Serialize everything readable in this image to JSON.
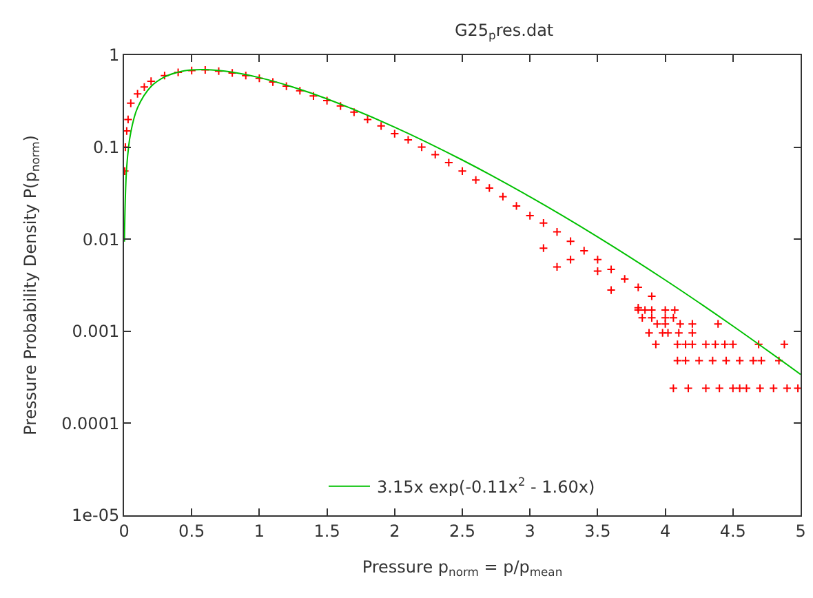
{
  "chart_data": {
    "type": "scatter",
    "title": "G25$_{p}$res.dat",
    "xlabel": "Pressure p$_{norm}$ = p/p$_{mean}$",
    "ylabel": "Pressure Probability Density P(p$_{norm}$)",
    "log": "y",
    "legend": "bottom",
    "marker": "cross",
    "xlim": [
      0,
      5
    ],
    "xticks": [
      0,
      0.5,
      1,
      1.5,
      2,
      2.5,
      3,
      3.5,
      4,
      4.5,
      5
    ],
    "ylim": [
      1e-05,
      1
    ],
    "yticks": [
      {
        "value": 1e-05,
        "label": "1e-05"
      },
      0.0001,
      0.001,
      0.01,
      0.1,
      1
    ],
    "series": [
      {
        "color": "#ff0000",
        "x": [
          0.005,
          0.01,
          0.02,
          0.03,
          0.05,
          0.1,
          0.15,
          0.2,
          0.3,
          0.4,
          0.5,
          0.6,
          0.7,
          0.8,
          0.9,
          1.0,
          1.1,
          1.2,
          1.3,
          1.4,
          1.5,
          1.6,
          1.7,
          1.8,
          1.9,
          2.0,
          2.1,
          2.2,
          2.3,
          2.4,
          2.5,
          2.6,
          2.7,
          2.8,
          2.9,
          3.0,
          3.1,
          3.2,
          3.3,
          3.4,
          3.5,
          3.6,
          3.7,
          3.8,
          3.9,
          3.1,
          3.3,
          3.5,
          3.6,
          3.2,
          3.8,
          3.8,
          3.85,
          3.9,
          4.0,
          4.07,
          3.83,
          3.9,
          4.0,
          4.06,
          3.94,
          4.0,
          4.11,
          4.2,
          4.39,
          3.88,
          3.98,
          4.02,
          4.1,
          4.2,
          3.93,
          4.09,
          4.15,
          4.2,
          4.3,
          4.37,
          4.44,
          4.5,
          4.69,
          4.88,
          4.09,
          4.15,
          4.25,
          4.35,
          4.45,
          4.55,
          4.65,
          4.71,
          4.84,
          4.06,
          4.17,
          4.3,
          4.4,
          4.5,
          4.55,
          4.6,
          4.7,
          4.8,
          4.9,
          4.98
        ],
        "values": [
          0.055,
          0.1,
          0.15,
          0.2,
          0.3,
          0.38,
          0.45,
          0.52,
          0.6,
          0.65,
          0.68,
          0.69,
          0.67,
          0.64,
          0.6,
          0.56,
          0.51,
          0.46,
          0.41,
          0.36,
          0.32,
          0.28,
          0.24,
          0.2,
          0.17,
          0.14,
          0.12,
          0.1,
          0.083,
          0.068,
          0.055,
          0.044,
          0.036,
          0.029,
          0.023,
          0.018,
          0.015,
          0.012,
          0.0095,
          0.0075,
          0.006,
          0.0047,
          0.0037,
          0.003,
          0.0024,
          0.008,
          0.006,
          0.0045,
          0.0028,
          0.005,
          0.0018,
          0.0017,
          0.0017,
          0.0017,
          0.0017,
          0.0017,
          0.0014,
          0.0014,
          0.0014,
          0.0014,
          0.0012,
          0.0012,
          0.0012,
          0.0012,
          0.0012,
          0.00096,
          0.00096,
          0.00096,
          0.00096,
          0.00096,
          0.00072,
          0.00072,
          0.00072,
          0.00072,
          0.00072,
          0.00072,
          0.00072,
          0.00072,
          0.00072,
          0.00072,
          0.00048,
          0.00048,
          0.00048,
          0.00048,
          0.00048,
          0.00048,
          0.00048,
          0.00048,
          0.00048,
          0.00024,
          0.00024,
          0.00024,
          0.00024,
          0.00024,
          0.00024,
          0.00024,
          0.00024,
          0.00024,
          0.00024,
          0.00024
        ]
      },
      {
        "type": "line",
        "name": "3.15x exp(-0.11x$^{2}$ - 1.60x)",
        "color": "#00c000",
        "marker": "none",
        "x": [
          0.003,
          0.02,
          0.05,
          0.1,
          0.2,
          0.3,
          0.4,
          0.5,
          0.6,
          0.8,
          1.0,
          1.25,
          1.5,
          2.0,
          2.5,
          3.0,
          3.5,
          4.0,
          4.5,
          5.0
        ],
        "values": [
          0.0094,
          0.061,
          0.145,
          0.268,
          0.456,
          0.579,
          0.653,
          0.689,
          0.696,
          0.653,
          0.57,
          0.449,
          0.335,
          0.165,
          0.0725,
          0.0289,
          0.0106,
          0.0036,
          0.00114,
          0.00034
        ]
      }
    ]
  }
}
